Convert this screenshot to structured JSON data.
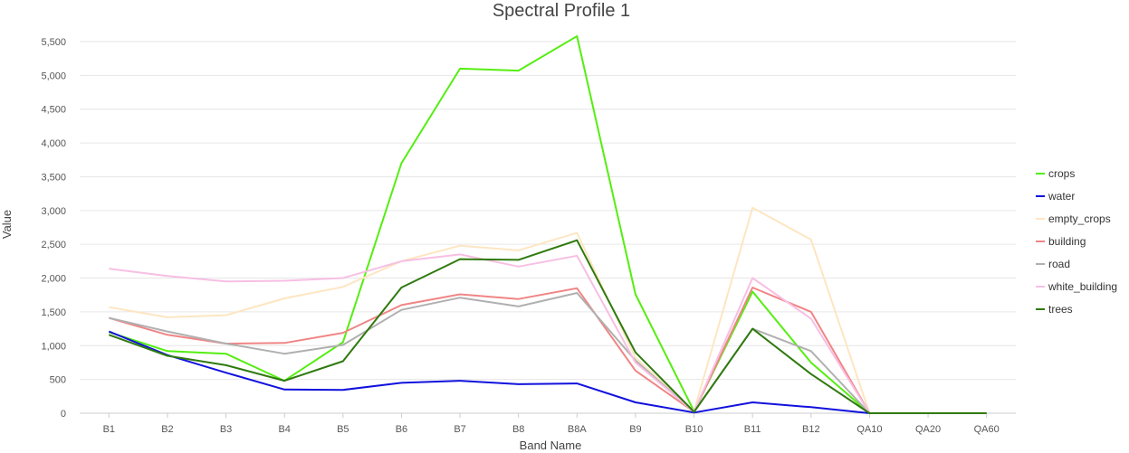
{
  "chart_data": {
    "type": "line",
    "title": "Spectral Profile 1",
    "xlabel": "Band Name",
    "ylabel": "Value",
    "categories": [
      "B1",
      "B2",
      "B3",
      "B4",
      "B5",
      "B6",
      "B7",
      "B8",
      "B8A",
      "B9",
      "B10",
      "B11",
      "B12",
      "QA10",
      "QA20",
      "QA60"
    ],
    "ylim": [
      0,
      5500
    ],
    "yticks": [
      0,
      500,
      1000,
      1500,
      2000,
      2500,
      3000,
      3500,
      4000,
      4500,
      5000,
      5500
    ],
    "ytick_labels": [
      "0",
      "500",
      "1,000",
      "1,500",
      "2,000",
      "2,500",
      "3,000",
      "3,500",
      "4,000",
      "4,500",
      "5,000",
      "5,500"
    ],
    "grid": true,
    "legend_position": "right",
    "series": [
      {
        "name": "crops",
        "color": "#55ee11",
        "values": [
          1200,
          920,
          880,
          480,
          1050,
          3700,
          5100,
          5070,
          5580,
          1760,
          30,
          1800,
          750,
          0,
          0,
          0
        ]
      },
      {
        "name": "water",
        "color": "#1111dd",
        "values": [
          1210,
          860,
          600,
          350,
          345,
          450,
          480,
          430,
          440,
          160,
          10,
          160,
          90,
          0,
          0,
          0
        ]
      },
      {
        "name": "empty_crops",
        "color": "#fde6c2",
        "values": [
          1570,
          1420,
          1450,
          1700,
          1870,
          2250,
          2480,
          2410,
          2670,
          820,
          30,
          3040,
          2570,
          0,
          0,
          0
        ]
      },
      {
        "name": "building",
        "color": "#f08585",
        "values": [
          1410,
          1160,
          1030,
          1040,
          1190,
          1600,
          1760,
          1690,
          1850,
          630,
          20,
          1860,
          1500,
          0,
          0,
          0
        ]
      },
      {
        "name": "road",
        "color": "#b0b0b0",
        "values": [
          1410,
          1210,
          1030,
          880,
          1010,
          1530,
          1710,
          1580,
          1780,
          780,
          20,
          1250,
          920,
          0,
          0,
          0
        ]
      },
      {
        "name": "white_building",
        "color": "#f7bfe3",
        "values": [
          2140,
          2030,
          1950,
          1960,
          2000,
          2250,
          2350,
          2170,
          2330,
          750,
          20,
          2000,
          1400,
          0,
          0,
          0
        ]
      },
      {
        "name": "trees",
        "color": "#2f7a0f",
        "values": [
          1160,
          850,
          710,
          480,
          770,
          1860,
          2280,
          2270,
          2560,
          900,
          20,
          1250,
          580,
          0,
          0,
          0
        ]
      }
    ]
  }
}
